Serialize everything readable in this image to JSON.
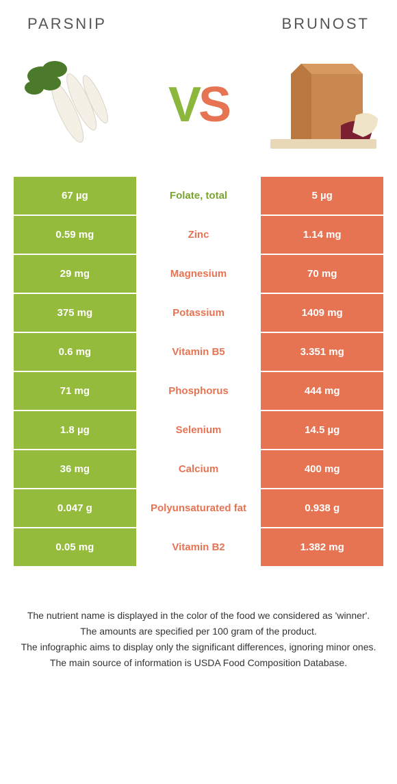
{
  "header": {
    "left_title": "Parsnip",
    "right_title": "Brunost"
  },
  "vs": {
    "v": "V",
    "s": "S"
  },
  "colors": {
    "green": "#94bb3c",
    "orange": "#e67453",
    "white": "#ffffff",
    "mid_green_text": "#7ba330",
    "mid_orange_text": "#e67453"
  },
  "rows": [
    {
      "left": "67 µg",
      "label": "Folate, total",
      "right": "5 µg",
      "winner": "left"
    },
    {
      "left": "0.59 mg",
      "label": "Zinc",
      "right": "1.14 mg",
      "winner": "right"
    },
    {
      "left": "29 mg",
      "label": "Magnesium",
      "right": "70 mg",
      "winner": "right"
    },
    {
      "left": "375 mg",
      "label": "Potassium",
      "right": "1409 mg",
      "winner": "right"
    },
    {
      "left": "0.6 mg",
      "label": "Vitamin B5",
      "right": "3.351 mg",
      "winner": "right"
    },
    {
      "left": "71 mg",
      "label": "Phosphorus",
      "right": "444 mg",
      "winner": "right"
    },
    {
      "left": "1.8 µg",
      "label": "Selenium",
      "right": "14.5 µg",
      "winner": "right"
    },
    {
      "left": "36 mg",
      "label": "Calcium",
      "right": "400 mg",
      "winner": "right"
    },
    {
      "left": "0.047 g",
      "label": "Polyunsaturated fat",
      "right": "0.938 g",
      "winner": "right"
    },
    {
      "left": "0.05 mg",
      "label": "Vitamin B2",
      "right": "1.382 mg",
      "winner": "right"
    }
  ],
  "footer": {
    "line1": "The nutrient name is displayed in the color of the food we considered as 'winner'.",
    "line2": "The amounts are specified per 100 gram of the product.",
    "line3": "The infographic aims to display only the significant differences, ignoring minor ones.",
    "line4": "The main source of information is USDA Food Composition Database."
  }
}
